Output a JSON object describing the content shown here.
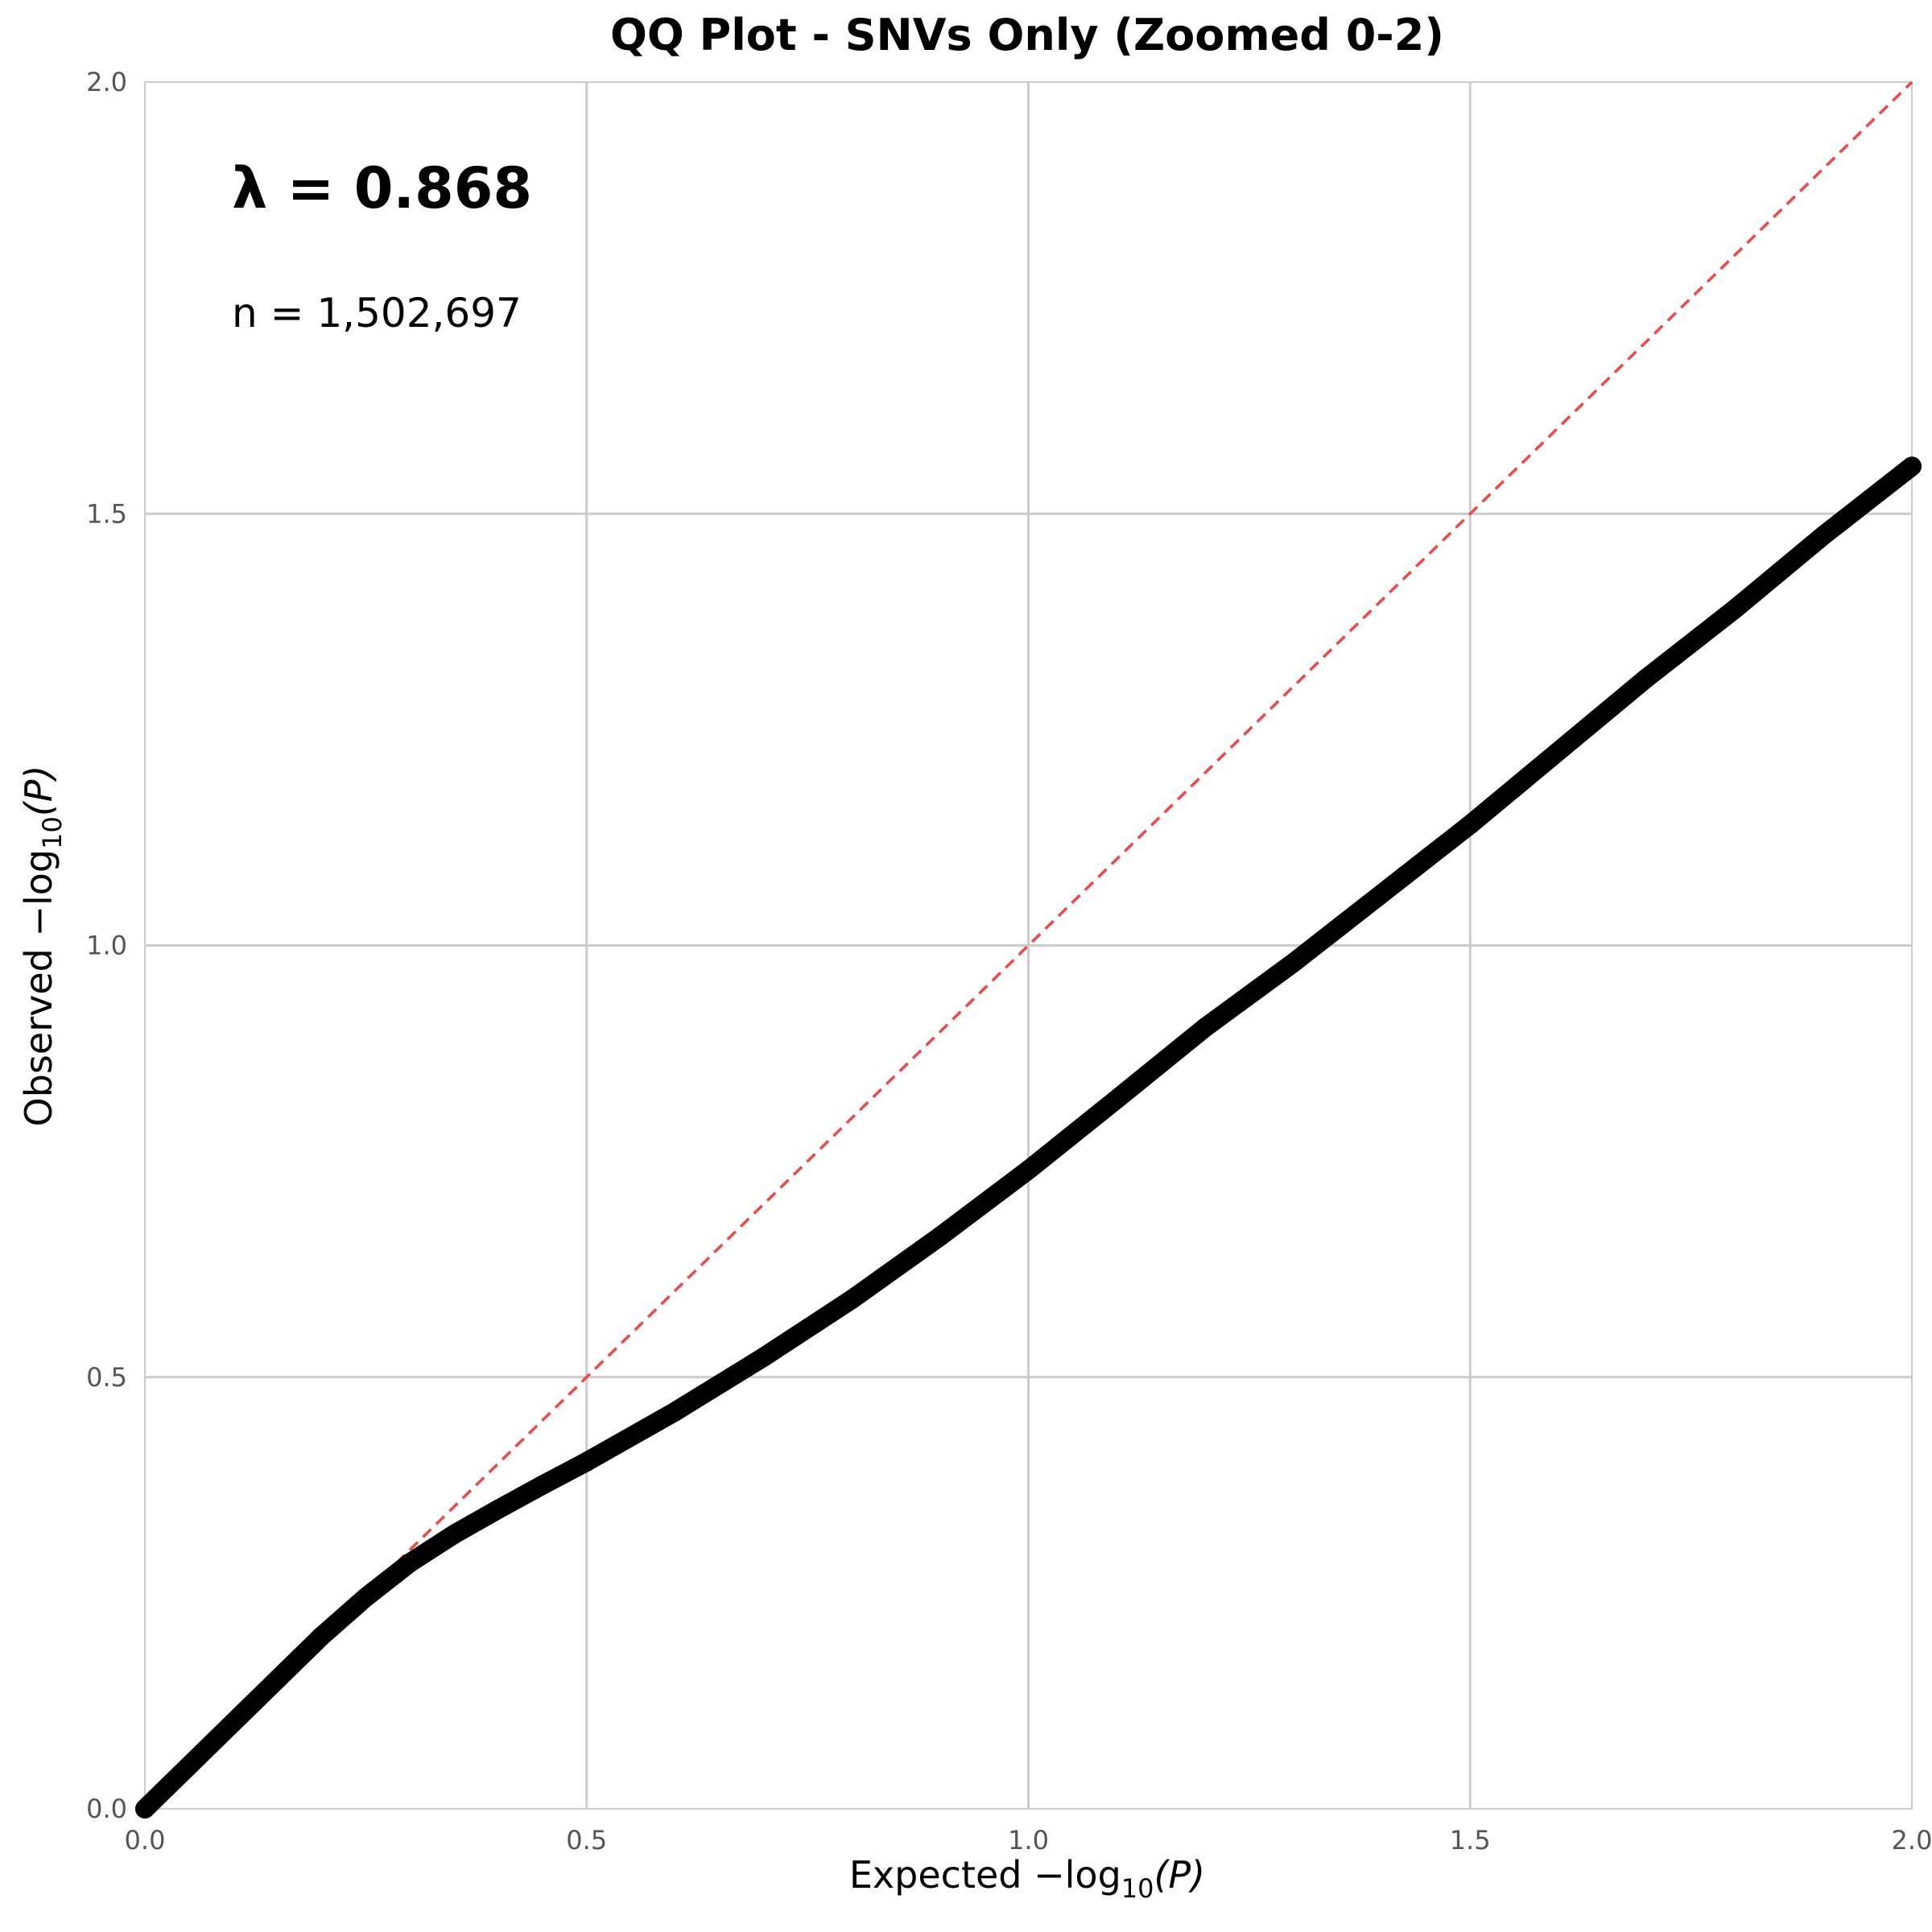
{
  "chart_data": {
    "type": "scatter",
    "title": "QQ Plot - SNVs Only (Zoomed 0-2)",
    "xlabel": {
      "prefix": "Expected −log",
      "sub": "10",
      "suffix": "(P)"
    },
    "ylabel": {
      "prefix": "Observed −log",
      "sub": "10",
      "suffix": "(P)"
    },
    "xlim": [
      0,
      2
    ],
    "ylim": [
      0,
      2
    ],
    "x_ticks": [
      "0.0",
      "0.5",
      "1.0",
      "1.5",
      "2.0"
    ],
    "y_ticks": [
      "0.0",
      "0.5",
      "1.0",
      "1.5",
      "2.0"
    ],
    "grid": true,
    "annotations": {
      "lambda": "λ = 0.868",
      "n": "n = 1,502,697"
    },
    "reference_line": {
      "style": "dashed",
      "color": "#f0474a",
      "from": [
        0,
        0
      ],
      "to": [
        2,
        2
      ]
    },
    "series": [
      {
        "color": "#000000",
        "x": [
          0.0,
          0.05,
          0.1,
          0.15,
          0.2,
          0.25,
          0.3,
          0.35,
          0.4,
          0.45,
          0.5,
          0.6,
          0.7,
          0.8,
          0.9,
          1.0,
          1.1,
          1.2,
          1.3,
          1.4,
          1.5,
          1.6,
          1.7,
          1.8,
          1.9,
          2.0
        ],
        "y": [
          0.0,
          0.05,
          0.1,
          0.15,
          0.2,
          0.245,
          0.285,
          0.318,
          0.347,
          0.375,
          0.402,
          0.46,
          0.523,
          0.59,
          0.663,
          0.74,
          0.822,
          0.905,
          0.98,
          1.06,
          1.14,
          1.225,
          1.31,
          1.39,
          1.475,
          1.555
        ]
      }
    ]
  },
  "colors": {
    "points": "#000000",
    "reference": "#f0474a",
    "grid": "#cccccc",
    "tick_text": "#555555"
  }
}
